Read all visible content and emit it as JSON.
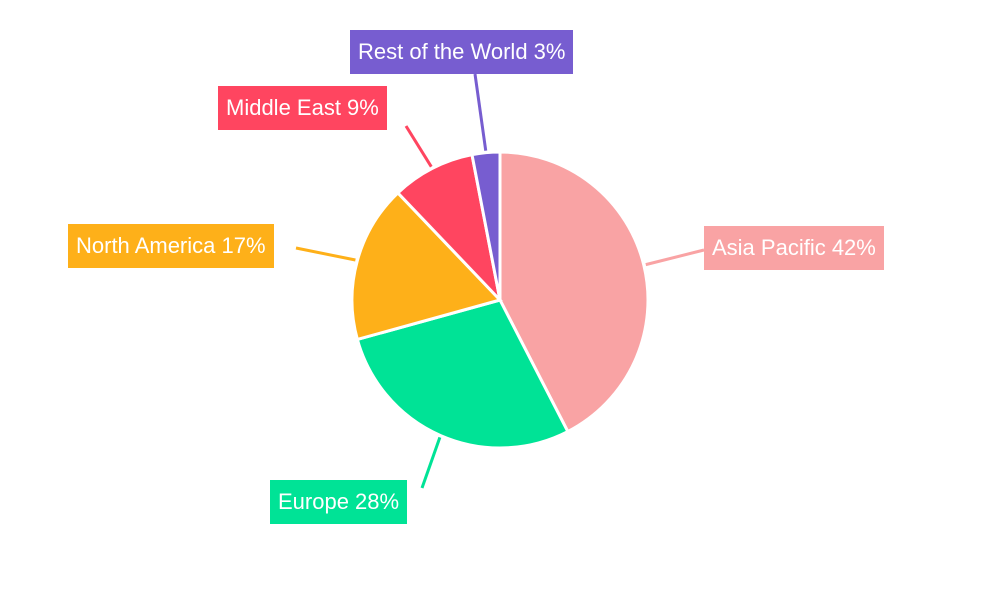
{
  "chart_data": {
    "type": "pie",
    "categories": [
      "Asia Pacific",
      "Europe",
      "North America",
      "Middle East",
      "Rest of the World"
    ],
    "values": [
      42,
      28,
      17,
      9,
      3
    ],
    "labels": [
      "Asia Pacific 42%",
      "Europe 28%",
      "North America 17%",
      "Middle East 9%",
      "Rest of the World 3%"
    ],
    "colors": [
      "#F9A3A4",
      "#00E396",
      "#FEB019",
      "#FF4560",
      "#775DD0"
    ],
    "start": "12 o'clock",
    "direction": "clockwise",
    "legend": "none"
  }
}
